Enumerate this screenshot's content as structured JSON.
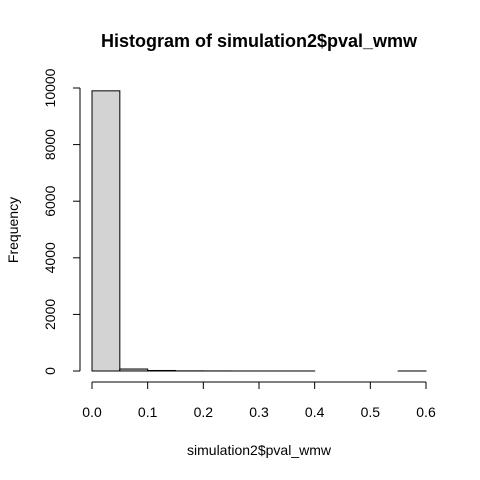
{
  "chart_data": {
    "type": "bar",
    "title": "Histogram of simulation2$pval_wmw",
    "xlabel": "simulation2$pval_wmw",
    "ylabel": "Frequency",
    "bins": [
      {
        "from": 0.0,
        "to": 0.05,
        "value": 9900
      },
      {
        "from": 0.05,
        "to": 0.1,
        "value": 70
      },
      {
        "from": 0.1,
        "to": 0.15,
        "value": 18
      },
      {
        "from": 0.15,
        "to": 0.2,
        "value": 5
      },
      {
        "from": 0.2,
        "to": 0.25,
        "value": 3
      },
      {
        "from": 0.25,
        "to": 0.3,
        "value": 1
      },
      {
        "from": 0.3,
        "to": 0.35,
        "value": 1
      },
      {
        "from": 0.35,
        "to": 0.4,
        "value": 1
      },
      {
        "from": 0.4,
        "to": 0.45,
        "value": 0
      },
      {
        "from": 0.45,
        "to": 0.5,
        "value": 0
      },
      {
        "from": 0.5,
        "to": 0.55,
        "value": 0
      },
      {
        "from": 0.55,
        "to": 0.6,
        "value": 1
      }
    ],
    "xlim": [
      0,
      0.6
    ],
    "ylim": [
      0,
      10000
    ],
    "xticks": [
      "0.0",
      "0.1",
      "0.2",
      "0.3",
      "0.4",
      "0.5",
      "0.6"
    ],
    "yticks": [
      "0",
      "2000",
      "4000",
      "6000",
      "8000",
      "10000"
    ],
    "bar_fill": "#d3d3d3",
    "bar_stroke": "#000000",
    "grid": false,
    "legend": "none"
  }
}
